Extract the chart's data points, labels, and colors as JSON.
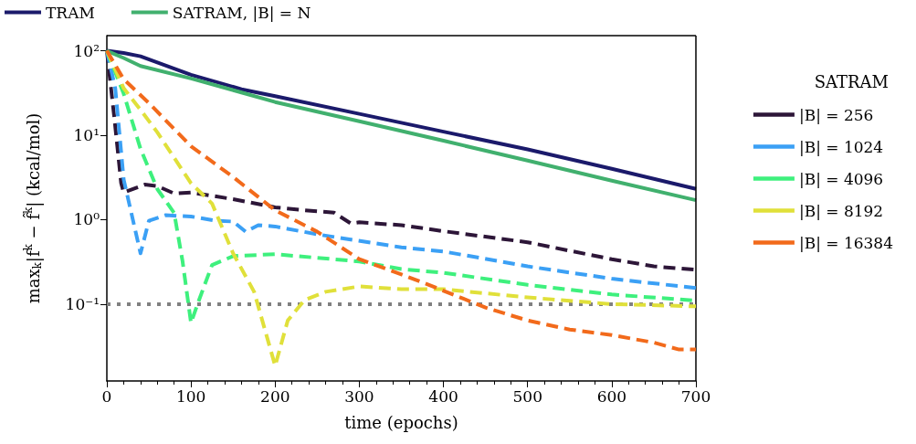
{
  "chart_data": {
    "type": "line",
    "xlabel": "time (epochs)",
    "ylabel": "max$_{k}$|f$^{k}$ − f̂$^{k}$| (kcal/mol)",
    "log": "y",
    "xlim": [
      0,
      700
    ],
    "xticks": [
      0,
      100,
      200,
      300,
      400,
      500,
      600,
      700
    ],
    "ylim": [
      0.0123,
      151
    ],
    "yticks": [
      {
        "value": 0.1,
        "label": "10⁻¹"
      },
      {
        "value": 1,
        "label": "10⁰"
      },
      {
        "value": 10,
        "label": "10¹"
      },
      {
        "value": 100,
        "label": "10²"
      }
    ],
    "grid": false,
    "legend": "right",
    "legend_title": "SATRAM",
    "marker": "none",
    "ref_lines": [
      {
        "axis": "y",
        "value": 0.1,
        "color": "#808080",
        "line_style": "dotted"
      }
    ],
    "series": [
      {
        "name": "TRAM",
        "color": "#1b1a6b",
        "line_style": "solid",
        "x": [
          0,
          20,
          40,
          100,
          160,
          200,
          300,
          400,
          500,
          600,
          700
        ],
        "values": [
          100,
          94,
          86,
          52,
          35,
          29,
          17.9,
          11,
          6.8,
          4.0,
          2.31
        ]
      },
      {
        "name": "SATRAM, |B| = N",
        "color": "#41b06e",
        "line_style": "solid",
        "x": [
          0,
          20,
          40,
          100,
          160,
          200,
          300,
          400,
          500,
          600,
          700
        ],
        "values": [
          100,
          82,
          66,
          47,
          32,
          24.7,
          14.6,
          8.6,
          5.0,
          2.9,
          1.7
        ]
      },
      {
        "name": "|B| = 256",
        "color": "#2d1638",
        "line_style": "dashed",
        "x": [
          0,
          9,
          17,
          20,
          45,
          60,
          80,
          100,
          150,
          200,
          235,
          270,
          290,
          300,
          350,
          400,
          500,
          600,
          650,
          700
        ],
        "values": [
          100,
          15.7,
          2.7,
          2.1,
          2.6,
          2.5,
          2.04,
          2.1,
          1.75,
          1.4,
          1.29,
          1.21,
          0.9,
          0.93,
          0.86,
          0.73,
          0.54,
          0.34,
          0.28,
          0.255
        ]
      },
      {
        "name": "|B| = 1024",
        "color": "#3ba0f5",
        "line_style": "dashed",
        "x": [
          0,
          10,
          20,
          40,
          50,
          70,
          100,
          130,
          150,
          165,
          180,
          200,
          250,
          350,
          400,
          500,
          600,
          700
        ],
        "values": [
          100,
          36,
          3.0,
          0.4,
          0.97,
          1.13,
          1.09,
          0.97,
          0.95,
          0.72,
          0.86,
          0.83,
          0.67,
          0.47,
          0.42,
          0.28,
          0.2,
          0.155
        ]
      },
      {
        "name": "|B| = 4096",
        "color": "#3ef07d",
        "line_style": "dashed",
        "x": [
          0,
          20,
          40,
          60,
          80,
          90,
          100,
          110,
          125,
          150,
          200,
          300,
          350,
          400,
          500,
          600,
          700
        ],
        "values": [
          100,
          31,
          6.9,
          2.3,
          1.2,
          0.32,
          0.06,
          0.115,
          0.29,
          0.37,
          0.39,
          0.32,
          0.26,
          0.235,
          0.169,
          0.13,
          0.11
        ]
      },
      {
        "name": "|B| = 8192",
        "color": "#e0e03a",
        "line_style": "dashed",
        "x": [
          0,
          20,
          40,
          60,
          80,
          100,
          125,
          150,
          175,
          200,
          215,
          235,
          260,
          300,
          350,
          400,
          500,
          600,
          700
        ],
        "values": [
          100,
          36,
          20,
          10.8,
          5.4,
          2.7,
          1.55,
          0.4,
          0.14,
          0.0186,
          0.064,
          0.112,
          0.14,
          0.162,
          0.15,
          0.15,
          0.12,
          0.1,
          0.094
        ]
      },
      {
        "name": "|B| = 16384",
        "color": "#f26a1b",
        "line_style": "dashed",
        "x": [
          0,
          20,
          50,
          100,
          150,
          200,
          250,
          300,
          350,
          380,
          420,
          450,
          500,
          550,
          600,
          650,
          680,
          700
        ],
        "values": [
          100,
          46,
          24,
          7.4,
          3.2,
          1.29,
          0.72,
          0.34,
          0.225,
          0.173,
          0.12,
          0.091,
          0.064,
          0.05,
          0.043,
          0.035,
          0.029,
          0.029
        ]
      }
    ]
  }
}
